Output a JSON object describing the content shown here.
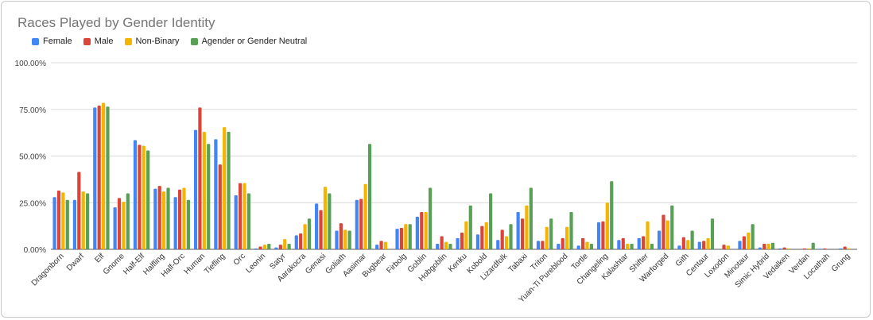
{
  "chart_data": {
    "type": "bar",
    "title": "Races Played by Gender Identity",
    "xlabel": "",
    "ylabel": "",
    "ylim": [
      0,
      100
    ],
    "yticks": [
      "0.00%",
      "25.00%",
      "50.00%",
      "75.00%",
      "100.00%"
    ],
    "grid": true,
    "legend_position": "top-left",
    "categories": [
      "Dragonborn",
      "Dwarf",
      "Elf",
      "Gnome",
      "Half-Elf",
      "Halfling",
      "Half-Orc",
      "Human",
      "Tiefling",
      "Orc",
      "Leonin",
      "Satyr",
      "Aarakocra",
      "Genasi",
      "Goliath",
      "Aasimar",
      "Bugbear",
      "Firbolg",
      "Goblin",
      "Hobgoblin",
      "Kenku",
      "Kobold",
      "Lizardfolk",
      "Tabaxi",
      "Triton",
      "Yuan-Ti Pureblood",
      "Tortle",
      "Changeling",
      "Kalashtar",
      "Shifter",
      "Warforged",
      "Gith",
      "Centaur",
      "Loxodon",
      "Minotaur",
      "Simic Hybrid",
      "Vedalken",
      "Verdan",
      "Locathah",
      "Grung"
    ],
    "series": [
      {
        "name": "Female",
        "color": "#4285f4",
        "values": [
          28,
          26.5,
          76,
          22.5,
          58.5,
          32.5,
          28,
          64,
          59,
          29,
          0.5,
          1,
          7.5,
          24.5,
          10,
          26.5,
          2.5,
          11,
          17.5,
          3,
          6,
          8,
          5,
          20,
          4.5,
          3,
          2,
          14.5,
          5,
          6,
          10,
          2,
          4,
          0,
          4.5,
          1,
          0.5,
          0,
          0.3,
          0.5
        ]
      },
      {
        "name": "Male",
        "color": "#db4437",
        "values": [
          31.5,
          41.5,
          77,
          27.5,
          56,
          34,
          32,
          76,
          45.5,
          35.5,
          1.5,
          2.5,
          8.5,
          21,
          14,
          27,
          4.5,
          11.5,
          20,
          7,
          9,
          12.5,
          10.5,
          16.5,
          4.5,
          6,
          6,
          15,
          6,
          7,
          18.5,
          6.5,
          4.5,
          2.5,
          7,
          3,
          1,
          0.5,
          0.5,
          1.5
        ]
      },
      {
        "name": "Non-Binary",
        "color": "#f4b400",
        "values": [
          30.5,
          31,
          78.5,
          25.5,
          55.5,
          31,
          33,
          63,
          65.5,
          35.5,
          2.5,
          5.5,
          13.5,
          33.5,
          10.5,
          35,
          4,
          13.5,
          20,
          4,
          15,
          14.5,
          7,
          23.5,
          12,
          12,
          4,
          25,
          3,
          15,
          15.5,
          5,
          6,
          2,
          9,
          3,
          0.5,
          0.5,
          0,
          0.5
        ]
      },
      {
        "name": "Agender or Gender Neutral",
        "color": "#0f9d58",
        "values": [
          26.5,
          30,
          76.5,
          30,
          53,
          33,
          26.5,
          56.5,
          63,
          30,
          3,
          3,
          16.5,
          30,
          10,
          56.5,
          0,
          13.5,
          33,
          3,
          23.5,
          30,
          13.5,
          33,
          16.5,
          20,
          3,
          36.5,
          3,
          3,
          23.5,
          10,
          16.5,
          0,
          13.5,
          3.5,
          0,
          3.5,
          0,
          0
        ]
      }
    ]
  }
}
